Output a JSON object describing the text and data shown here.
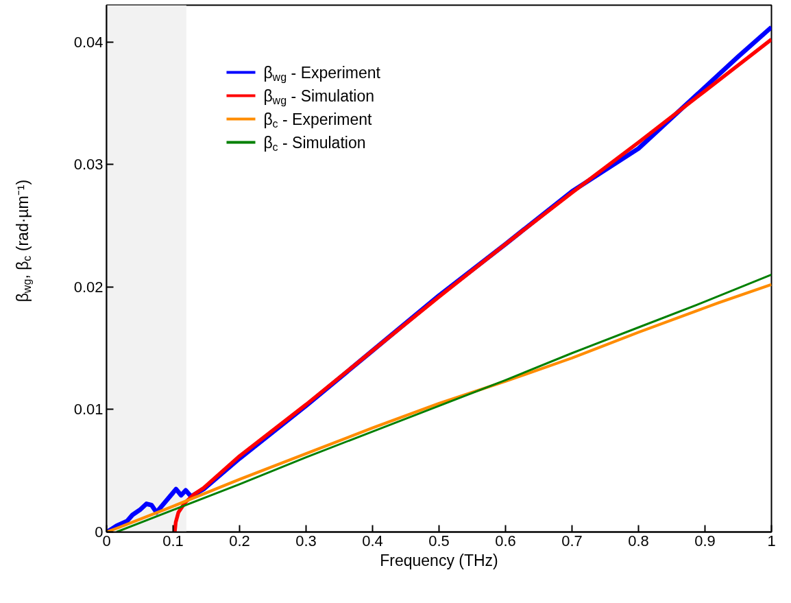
{
  "chart_data": {
    "type": "line",
    "xlabel": "Frequency (THz)",
    "ylabel": "β$_{wg}$, β$_{c}$ (rad·µm⁻¹)",
    "xlim": [
      0,
      1
    ],
    "ylim": [
      0,
      0.043
    ],
    "xticks": [
      0,
      0.1,
      0.2,
      0.3,
      0.4,
      0.5,
      0.6,
      0.7,
      0.8,
      0.9,
      1
    ],
    "yticks": [
      0,
      0.01,
      0.02,
      0.03,
      0.04
    ],
    "grid": false,
    "legend": "top left",
    "line_style": "solid",
    "marker": "none",
    "bands": [
      {
        "axis": "x",
        "from": 0,
        "to": 0.12,
        "label": null,
        "color": "#f2f2f2"
      }
    ],
    "series": [
      {
        "name": "β$_{wg}$ - Experiment",
        "color": "#0000ff",
        "x": [
          0,
          0.0034,
          0.015,
          0.031,
          0.039,
          0.05,
          0.06,
          0.0675,
          0.075,
          0.1045,
          0.112,
          0.119,
          0.127,
          0.146,
          0.2,
          0.3,
          0.4,
          0.5,
          0.6,
          0.7,
          0.8,
          0.9,
          0.95,
          1.0
        ],
        "values": [
          0,
          0.0001,
          0.0005,
          0.0009,
          0.0014,
          0.0018,
          0.0023,
          0.0022,
          0.0016,
          0.0035,
          0.003,
          0.0034,
          0.0029,
          0.0035,
          0.006,
          0.0103,
          0.0148,
          0.0193,
          0.0235,
          0.0278,
          0.0313,
          0.0363,
          0.0388,
          0.0412
        ]
      },
      {
        "name": "β$_{wg}$ - Simulation",
        "color": "#ff0000",
        "x": [
          0.1026,
          0.104,
          0.108,
          0.118,
          0.132,
          0.146,
          0.2,
          0.3,
          0.4,
          0.5,
          0.6,
          0.7,
          0.8,
          0.9,
          1.0
        ],
        "values": [
          0,
          0.0008,
          0.0016,
          0.0024,
          0.0031,
          0.0036,
          0.0062,
          0.0104,
          0.0148,
          0.0192,
          0.0235,
          0.0277,
          0.0318,
          0.036,
          0.0402
        ]
      },
      {
        "name": "β$_{c}$ - Experiment",
        "color": "#ff8c00",
        "x": [
          0,
          0.02,
          0.1,
          0.2,
          0.3,
          0.4,
          0.5,
          0.6,
          0.7,
          0.8,
          0.9,
          0.92,
          1.0
        ],
        "values": [
          0,
          0.0004,
          0.0021,
          0.0043,
          0.0064,
          0.0085,
          0.0105,
          0.0123,
          0.0142,
          0.0163,
          0.0183,
          0.0187,
          0.0202
        ]
      },
      {
        "name": "β$_{c}$ - Simulation",
        "color": "#008000",
        "x": [
          0.015,
          0.1,
          0.2,
          0.3,
          0.4,
          0.5,
          0.6,
          0.7,
          0.8,
          0.9,
          1.0
        ],
        "values": [
          0,
          0.0018,
          0.0039,
          0.0061,
          0.0082,
          0.0103,
          0.0124,
          0.0146,
          0.0167,
          0.0188,
          0.021
        ]
      }
    ]
  }
}
